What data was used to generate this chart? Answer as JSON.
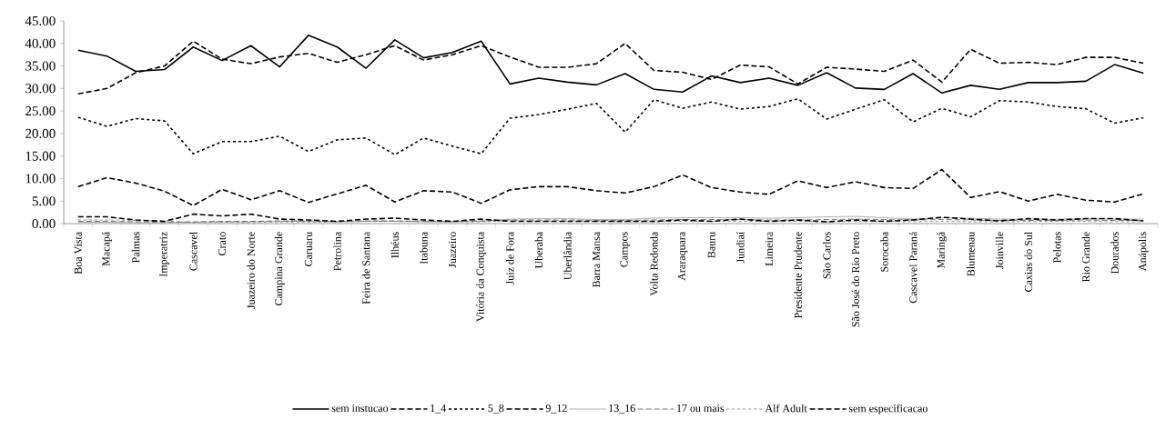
{
  "chart_data": {
    "type": "line",
    "categories": [
      "Boa Vista",
      "Macapá",
      "Palmas",
      "Imperatriz",
      "Cascavel",
      "Crato",
      "Juazeiro do Norte",
      "Campina Grande",
      "Caruaru",
      "Petrolina",
      "Feira de Santana",
      "Ilhéus",
      "Itabuna",
      "Juazeiro",
      "Vitória da Conquista",
      "Juiz de Fora",
      "Uberaba",
      "Uberlândia",
      "Barra Mansa",
      "Campos",
      "Volta Redonda",
      "Araraquara",
      "Bauru",
      "Jundiaí",
      "Limeira",
      "Presidente Prudente",
      "São Carlos",
      "São José do Rio Preto",
      "Sorocaba",
      "Cascavel Paraná",
      "Maringá",
      "Blumenau",
      "Joinville",
      "Caxias do Sul",
      "Pelotas",
      "Rio Grande",
      "Dourados",
      "Anápolis"
    ],
    "series": [
      {
        "name": "sem instucao",
        "color": "#000000",
        "line_style": "solid",
        "values": [
          38.5,
          37.2,
          33.8,
          34.2,
          39.2,
          36.2,
          39.5,
          34.8,
          41.8,
          39.2,
          34.5,
          40.8,
          36.8,
          38.0,
          40.5,
          31.0,
          32.3,
          31.4,
          30.8,
          33.3,
          29.8,
          29.2,
          32.8,
          31.3,
          32.3,
          30.7,
          33.5,
          30.1,
          29.8,
          33.3,
          29.0,
          30.7,
          29.8,
          31.3,
          31.3,
          31.6,
          35.3,
          33.4
        ]
      },
      {
        "name": "1_4",
        "color": "#000000",
        "line_style": "dashed",
        "values": [
          28.8,
          30.0,
          33.5,
          35.0,
          40.5,
          36.5,
          35.5,
          37.0,
          37.8,
          35.8,
          37.5,
          39.5,
          36.3,
          37.5,
          39.5,
          37.0,
          34.7,
          34.7,
          35.5,
          40.0,
          34.0,
          33.6,
          32.0,
          35.2,
          34.8,
          31.0,
          34.7,
          34.3,
          33.8,
          36.3,
          31.4,
          38.7,
          35.6,
          35.8,
          35.3,
          36.9,
          36.9,
          35.6
        ]
      },
      {
        "name": "5_8",
        "color": "#000000",
        "line_style": "dotted",
        "values": [
          23.6,
          21.6,
          23.3,
          22.8,
          15.5,
          18.2,
          18.2,
          19.4,
          16.0,
          18.6,
          19.0,
          15.3,
          19.0,
          17.2,
          15.5,
          23.4,
          24.2,
          25.4,
          26.7,
          20.3,
          27.5,
          25.6,
          27.0,
          25.4,
          26.0,
          27.7,
          23.2,
          25.4,
          27.5,
          22.6,
          25.6,
          23.7,
          27.3,
          27.0,
          26.0,
          25.5,
          22.3,
          23.5
        ]
      },
      {
        "name": "9_12",
        "color": "#000000",
        "line_style": "dashed",
        "values": [
          8.2,
          10.2,
          9.0,
          7.2,
          4.0,
          7.6,
          5.3,
          7.3,
          4.7,
          6.6,
          8.5,
          4.8,
          7.3,
          7.0,
          4.5,
          7.5,
          8.2,
          8.2,
          7.3,
          6.8,
          8.2,
          10.8,
          8.0,
          7.0,
          6.5,
          9.5,
          8.0,
          9.3,
          8.0,
          7.8,
          12.0,
          5.8,
          7.1,
          5.0,
          6.5,
          5.2,
          4.8,
          6.6
        ]
      },
      {
        "name": "13_16",
        "color": "#999999",
        "line_style": "solid",
        "values": [
          0.3,
          0.3,
          0.2,
          0.2,
          0.3,
          0.4,
          0.4,
          0.5,
          0.5,
          0.4,
          0.5,
          0.5,
          0.4,
          0.4,
          0.5,
          1.0,
          1.1,
          1.1,
          0.9,
          0.9,
          1.2,
          1.3,
          1.3,
          1.3,
          1.2,
          1.3,
          1.5,
          1.6,
          1.3,
          1.0,
          1.3,
          1.2,
          1.0,
          1.0,
          1.0,
          1.1,
          1.0,
          1.0
        ]
      },
      {
        "name": "17 ou mais",
        "color": "#555555",
        "line_style": "dashed",
        "values": [
          0.5,
          0.5,
          0.4,
          0.3,
          0.4,
          0.5,
          0.5,
          0.6,
          0.6,
          0.5,
          0.6,
          0.6,
          0.5,
          0.5,
          0.6,
          0.8,
          0.8,
          0.8,
          0.7,
          0.7,
          0.8,
          0.9,
          0.9,
          0.9,
          0.8,
          0.8,
          0.9,
          1.0,
          0.9,
          0.8,
          0.9,
          0.8,
          0.7,
          0.7,
          0.7,
          0.8,
          0.7,
          0.7
        ]
      },
      {
        "name": "Alf Adult",
        "color": "#777777",
        "line_style": "dotted",
        "values": [
          0.8,
          0.8,
          0.7,
          0.6,
          0.2,
          0.3,
          0.2,
          0.4,
          0.3,
          0.4,
          0.5,
          0.5,
          0.5,
          0.4,
          0.4,
          0.6,
          0.5,
          0.5,
          0.5,
          0.4,
          0.4,
          0.5,
          0.5,
          0.5,
          0.5,
          0.5,
          0.4,
          0.5,
          0.5,
          0.4,
          0.5,
          0.4,
          0.4,
          0.5,
          0.5,
          0.5,
          0.4,
          0.4
        ]
      },
      {
        "name": "sem especificacao",
        "color": "#000000",
        "line_style": "dashed",
        "values": [
          1.5,
          1.5,
          0.8,
          0.5,
          2.1,
          1.7,
          2.1,
          1.0,
          0.8,
          0.5,
          1.0,
          1.2,
          0.8,
          0.5,
          1.0,
          0.5,
          0.5,
          0.5,
          0.5,
          0.5,
          0.5,
          0.8,
          0.5,
          1.0,
          0.5,
          0.8,
          0.4,
          0.8,
          0.5,
          0.8,
          1.4,
          1.0,
          0.6,
          1.1,
          0.8,
          1.1,
          1.1,
          0.6
        ]
      }
    ],
    "ylim": [
      0,
      45
    ],
    "yticks": [
      {
        "value": 0,
        "label": "0.00"
      },
      {
        "value": 5,
        "label": "5.00"
      },
      {
        "value": 10,
        "label": "10.00"
      },
      {
        "value": 15,
        "label": "15.00"
      },
      {
        "value": 20,
        "label": "20.00"
      },
      {
        "value": 25,
        "label": "25.00"
      },
      {
        "value": 30,
        "label": "30.00"
      },
      {
        "value": 35,
        "label": "35.00"
      },
      {
        "value": 40,
        "label": "40.00"
      },
      {
        "value": 45,
        "label": "45.00"
      }
    ],
    "grid": false,
    "legend": "bottom"
  }
}
